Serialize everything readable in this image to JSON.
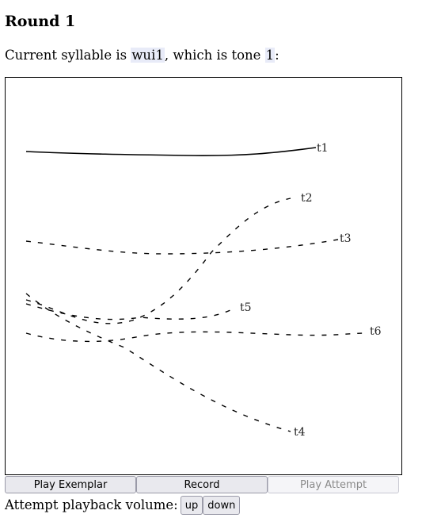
{
  "round_title": "Round 1",
  "prompt": {
    "prefix": "Current syllable is ",
    "syllable": "wui1",
    "middle": ", which is tone ",
    "tone": "1",
    "suffix": ":"
  },
  "tone_contours": [
    {
      "label": "t1",
      "style": "solid"
    },
    {
      "label": "t2",
      "style": "dashed"
    },
    {
      "label": "t3",
      "style": "dashed"
    },
    {
      "label": "t4",
      "style": "dashed"
    },
    {
      "label": "t5",
      "style": "dashed"
    },
    {
      "label": "t6",
      "style": "dashed"
    }
  ],
  "buttons": {
    "play_exemplar": "Play Exemplar",
    "record": "Record",
    "play_attempt": "Play Attempt"
  },
  "volume": {
    "label": "Attempt playback volume:",
    "up": "up",
    "down": "down"
  }
}
